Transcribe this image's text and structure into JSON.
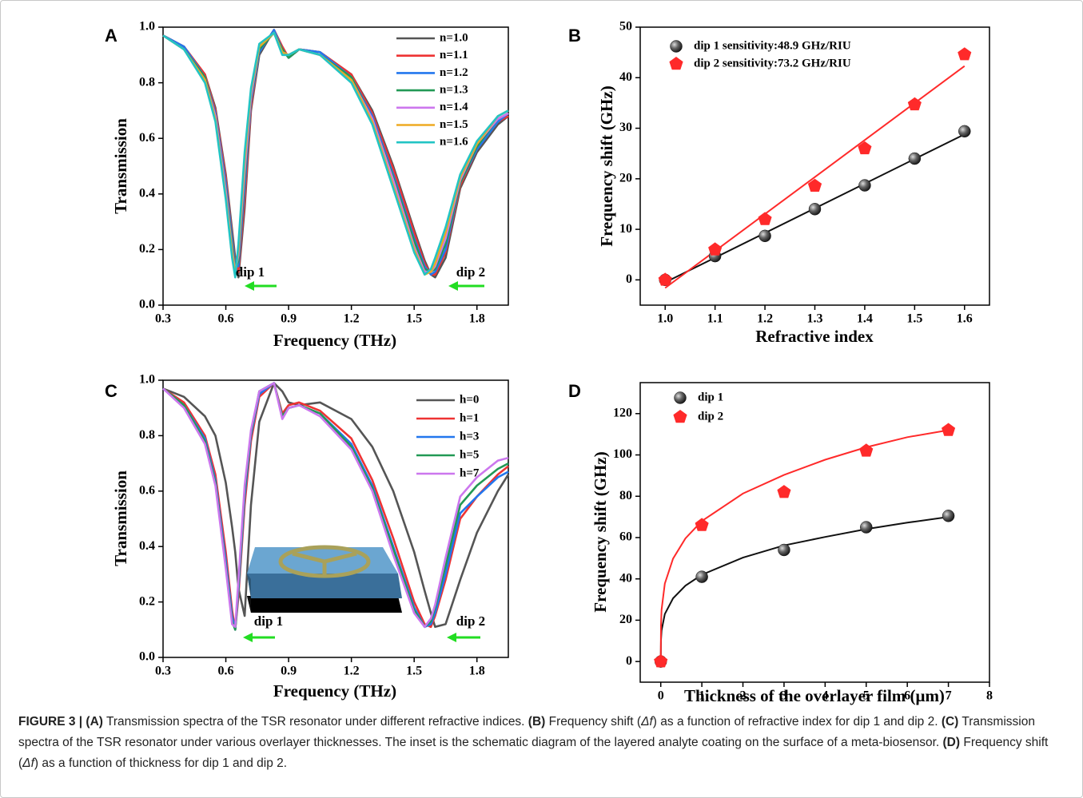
{
  "chart_data": [
    {
      "type": "line",
      "label": "A",
      "xlabel": "Frequency (THz)",
      "ylabel": "Transmission",
      "xlim": [
        0.3,
        1.95
      ],
      "ylim": [
        0,
        1
      ],
      "xticks": [
        0.3,
        0.6,
        0.9,
        1.2,
        1.5,
        1.8
      ],
      "yticks": [
        {
          "value": 0,
          "label": "0.0"
        },
        0.2,
        0.4,
        0.6,
        0.8,
        {
          "value": 1,
          "label": "1.0"
        }
      ],
      "x": [
        0.3,
        0.4,
        0.5,
        0.55,
        0.6,
        0.63,
        0.645,
        0.66,
        0.69,
        0.72,
        0.76,
        0.83,
        0.87,
        0.9,
        0.95,
        1.05,
        1.2,
        1.3,
        1.4,
        1.5,
        1.55,
        1.58,
        1.6,
        1.65,
        1.72,
        1.8,
        1.9,
        1.95
      ],
      "series": [
        {
          "name": "n=1.0",
          "color": "#555555",
          "values": [
            0.97,
            0.93,
            0.83,
            0.71,
            0.47,
            0.27,
            0.17,
            0.1,
            0.35,
            0.7,
            0.9,
            0.99,
            0.93,
            0.89,
            0.92,
            0.91,
            0.83,
            0.7,
            0.5,
            0.27,
            0.16,
            0.11,
            0.1,
            0.17,
            0.42,
            0.55,
            0.65,
            0.68
          ]
        },
        {
          "name": "n=1.1",
          "color": "#ee3333",
          "values": [
            0.97,
            0.93,
            0.83,
            0.7,
            0.46,
            0.25,
            0.15,
            0.12,
            0.38,
            0.71,
            0.91,
            0.99,
            0.93,
            0.89,
            0.92,
            0.91,
            0.83,
            0.69,
            0.49,
            0.26,
            0.15,
            0.11,
            0.11,
            0.19,
            0.43,
            0.56,
            0.66,
            0.68
          ]
        },
        {
          "name": "n=1.2",
          "color": "#2277ee",
          "values": [
            0.97,
            0.93,
            0.82,
            0.69,
            0.44,
            0.24,
            0.14,
            0.14,
            0.42,
            0.73,
            0.91,
            0.99,
            0.92,
            0.89,
            0.92,
            0.91,
            0.82,
            0.68,
            0.47,
            0.24,
            0.14,
            0.11,
            0.12,
            0.2,
            0.44,
            0.56,
            0.66,
            0.69
          ]
        },
        {
          "name": "n=1.3",
          "color": "#229955",
          "values": [
            0.97,
            0.92,
            0.82,
            0.68,
            0.42,
            0.22,
            0.13,
            0.16,
            0.45,
            0.74,
            0.92,
            0.98,
            0.92,
            0.89,
            0.92,
            0.9,
            0.82,
            0.67,
            0.46,
            0.23,
            0.13,
            0.12,
            0.13,
            0.22,
            0.44,
            0.57,
            0.67,
            0.69
          ]
        },
        {
          "name": "n=1.4",
          "color": "#cc77ee",
          "values": [
            0.97,
            0.92,
            0.81,
            0.68,
            0.41,
            0.2,
            0.12,
            0.18,
            0.48,
            0.75,
            0.93,
            0.98,
            0.91,
            0.9,
            0.92,
            0.9,
            0.81,
            0.67,
            0.45,
            0.21,
            0.12,
            0.12,
            0.14,
            0.24,
            0.45,
            0.58,
            0.67,
            0.69
          ]
        },
        {
          "name": "n=1.5",
          "color": "#eeaa22",
          "values": [
            0.97,
            0.92,
            0.81,
            0.67,
            0.39,
            0.19,
            0.11,
            0.2,
            0.52,
            0.77,
            0.93,
            0.98,
            0.91,
            0.9,
            0.92,
            0.9,
            0.81,
            0.66,
            0.43,
            0.2,
            0.11,
            0.12,
            0.15,
            0.26,
            0.46,
            0.58,
            0.68,
            0.7
          ]
        },
        {
          "name": "n=1.6",
          "color": "#22c4c4",
          "values": [
            0.97,
            0.92,
            0.8,
            0.66,
            0.38,
            0.17,
            0.1,
            0.22,
            0.55,
            0.78,
            0.94,
            0.98,
            0.9,
            0.9,
            0.92,
            0.9,
            0.8,
            0.65,
            0.42,
            0.19,
            0.11,
            0.13,
            0.17,
            0.28,
            0.47,
            0.59,
            0.68,
            0.7
          ]
        }
      ],
      "annotations": [
        "dip 1",
        "dip 2"
      ],
      "annotation_color": "#22dd22"
    },
    {
      "type": "scatter",
      "label": "B",
      "xlabel": "Refractive index",
      "ylabel": "Frequency shift (GHz)",
      "xlim": [
        0.95,
        1.65
      ],
      "ylim": [
        -5,
        50
      ],
      "xticks": [
        {
          "value": 1,
          "label": "1.0"
        },
        1.1,
        1.2,
        1.3,
        1.4,
        1.5,
        1.6
      ],
      "yticks": [
        0,
        10,
        20,
        30,
        40,
        50
      ],
      "x": [
        1.0,
        1.1,
        1.2,
        1.3,
        1.4,
        1.5,
        1.6
      ],
      "series": [
        {
          "name": "dip 1 sensitivity:48.9 GHz/RIU",
          "color": "#111111",
          "marker": "sphere",
          "values": [
            0,
            4.7,
            8.7,
            14,
            18.7,
            24,
            29.4
          ],
          "fit": {
            "x": [
              1.0,
              1.6
            ],
            "values": [
              -0.5,
              28.8
            ]
          }
        },
        {
          "name": "dip 2 sensitivity:73.2 GHz/RIU",
          "color": "#ff2a2a",
          "marker": "pentagon",
          "values": [
            0,
            6,
            12,
            18.6,
            26,
            34.7,
            44.6
          ],
          "fit": {
            "x": [
              1.0,
              1.6
            ],
            "values": [
              -1.6,
              42.3
            ]
          }
        }
      ]
    },
    {
      "type": "line",
      "label": "C",
      "xlabel": "Frequency (THz)",
      "ylabel": "Transmission",
      "xlim": [
        0.3,
        1.95
      ],
      "ylim": [
        0,
        1
      ],
      "xticks": [
        0.3,
        0.6,
        0.9,
        1.2,
        1.5,
        1.8
      ],
      "yticks": [
        {
          "value": 0,
          "label": "0.0"
        },
        0.2,
        0.4,
        0.6,
        0.8,
        {
          "value": 1,
          "label": "1.0"
        }
      ],
      "x": [
        0.3,
        0.4,
        0.5,
        0.55,
        0.6,
        0.63,
        0.645,
        0.66,
        0.69,
        0.72,
        0.76,
        0.83,
        0.87,
        0.9,
        0.95,
        1.05,
        1.2,
        1.3,
        1.4,
        1.5,
        1.55,
        1.58,
        1.6,
        1.65,
        1.72,
        1.8,
        1.9,
        1.95
      ],
      "series": [
        {
          "name": "h=0",
          "color": "#555555",
          "values": [
            0.97,
            0.94,
            0.87,
            0.8,
            0.63,
            0.47,
            0.38,
            0.25,
            0.15,
            0.55,
            0.85,
            0.99,
            0.96,
            0.92,
            0.91,
            0.92,
            0.86,
            0.76,
            0.6,
            0.38,
            0.24,
            0.16,
            0.11,
            0.12,
            0.28,
            0.45,
            0.6,
            0.66
          ]
        },
        {
          "name": "h=1",
          "color": "#ee3333",
          "values": [
            0.97,
            0.92,
            0.8,
            0.66,
            0.38,
            0.17,
            0.1,
            0.22,
            0.55,
            0.78,
            0.94,
            0.99,
            0.88,
            0.91,
            0.92,
            0.89,
            0.79,
            0.64,
            0.43,
            0.2,
            0.12,
            0.11,
            0.15,
            0.28,
            0.5,
            0.58,
            0.66,
            0.69
          ]
        },
        {
          "name": "h=3",
          "color": "#2277ee",
          "values": [
            0.97,
            0.91,
            0.79,
            0.64,
            0.35,
            0.15,
            0.1,
            0.24,
            0.58,
            0.8,
            0.95,
            0.99,
            0.87,
            0.9,
            0.91,
            0.88,
            0.77,
            0.62,
            0.4,
            0.18,
            0.11,
            0.12,
            0.16,
            0.3,
            0.52,
            0.58,
            0.65,
            0.67
          ]
        },
        {
          "name": "h=5",
          "color": "#229955",
          "values": [
            0.97,
            0.91,
            0.78,
            0.63,
            0.33,
            0.13,
            0.1,
            0.26,
            0.6,
            0.81,
            0.96,
            0.99,
            0.87,
            0.9,
            0.91,
            0.88,
            0.76,
            0.61,
            0.39,
            0.17,
            0.11,
            0.13,
            0.18,
            0.33,
            0.55,
            0.62,
            0.68,
            0.7
          ]
        },
        {
          "name": "h=7",
          "color": "#cc77ee",
          "values": [
            0.97,
            0.9,
            0.77,
            0.62,
            0.32,
            0.12,
            0.11,
            0.28,
            0.62,
            0.82,
            0.96,
            0.99,
            0.86,
            0.9,
            0.91,
            0.87,
            0.75,
            0.6,
            0.37,
            0.16,
            0.11,
            0.14,
            0.19,
            0.36,
            0.58,
            0.65,
            0.71,
            0.72
          ]
        }
      ],
      "annotations": [
        "dip 1",
        "dip 2"
      ],
      "annotation_color": "#22dd22"
    },
    {
      "type": "scatter",
      "label": "D",
      "xlabel": "Thickness of the overlayer film (μm)",
      "ylabel": "Frequency shift (GHz)",
      "xlim": [
        -0.5,
        8
      ],
      "ylim": [
        -10,
        135
      ],
      "xticks": [
        0,
        1,
        2,
        3,
        4,
        5,
        6,
        7,
        8
      ],
      "yticks": [
        0,
        20,
        40,
        60,
        80,
        100,
        120
      ],
      "x": [
        0,
        1,
        3,
        5,
        7
      ],
      "series": [
        {
          "name": "dip 1",
          "color": "#111111",
          "marker": "sphere",
          "values": [
            0,
            41,
            54,
            65,
            70.5
          ],
          "fit": {
            "x": [
              0,
              0.005,
              0.02,
              0.1,
              0.3,
              0.6,
              1,
              2,
              3,
              4,
              5,
              6,
              7
            ],
            "values": [
              0,
              10.4,
              15,
              23,
              30.6,
              36.7,
              42,
              50.3,
              56.2,
              60.3,
              64.1,
              67.2,
              70
            ]
          }
        },
        {
          "name": "dip 2",
          "color": "#ff2a2a",
          "marker": "pentagon",
          "values": [
            0,
            66,
            82,
            102,
            112
          ],
          "fit": {
            "x": [
              0,
              0.005,
              0.02,
              0.1,
              0.3,
              0.6,
              1,
              2,
              3,
              4,
              5,
              6,
              7
            ],
            "values": [
              0,
              17.5,
              25,
              37.7,
              49.8,
              59.6,
              68,
              81.3,
              90.3,
              97.7,
              103.7,
              108.6,
              112
            ]
          }
        }
      ]
    }
  ],
  "caption": [
    {
      "text": "FIGURE 3 | (A)",
      "style": "bold"
    },
    {
      "text": " Transmission spectra of the TSR resonator under different refractive indices. ",
      "style": "normal"
    },
    {
      "text": "(B)",
      "style": "bold"
    },
    {
      "text": " Frequency shift (",
      "style": "normal"
    },
    {
      "text": "Δf",
      "style": "italic"
    },
    {
      "text": ") as a function of refractive index for dip 1 and dip 2. ",
      "style": "normal"
    },
    {
      "text": "(C)",
      "style": "bold"
    },
    {
      "text": " Transmission spectra of the TSR resonator under various overlayer thicknesses. The inset is the schematic diagram of the layered analyte coating on the surface of a meta-biosensor. ",
      "style": "normal"
    },
    {
      "text": "(D)",
      "style": "bold"
    },
    {
      "text": " Frequency shift (",
      "style": "normal"
    },
    {
      "text": "Δf",
      "style": "italic"
    },
    {
      "text": ") as a function of thickness for dip 1 and dip 2.",
      "style": "normal"
    }
  ]
}
